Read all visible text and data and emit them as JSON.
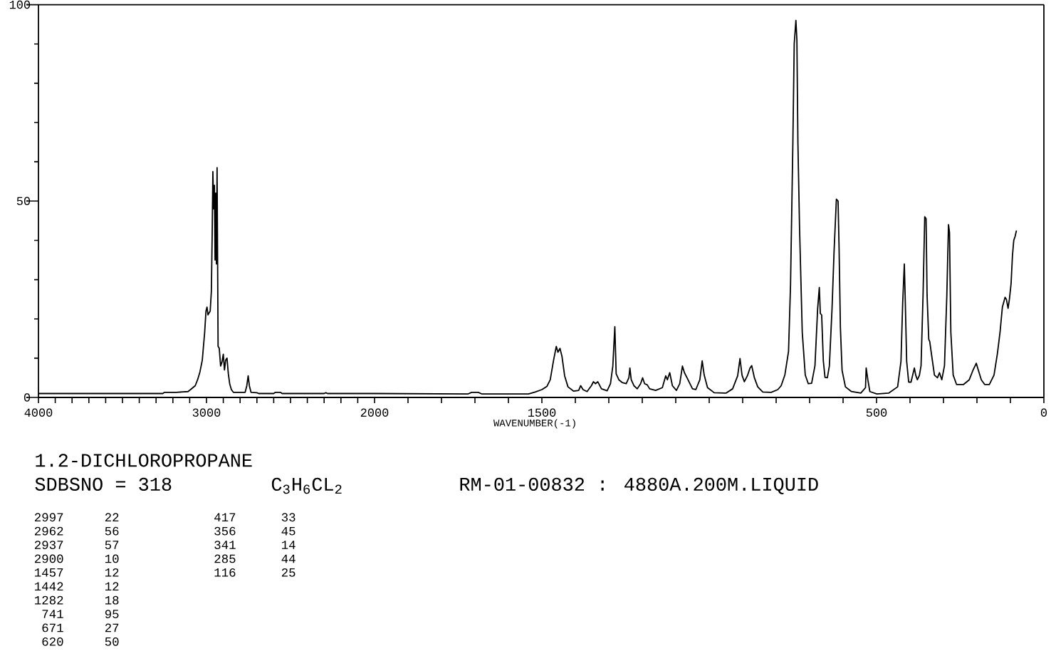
{
  "chart_data": [
    {
      "type": "line",
      "title": "1.2-DICHLOROPROPANE",
      "subtitle": "SDBSNO = 318",
      "annotations": [
        "C$_{3}$H$_{6}$CL$_{2}$",
        "RM-01-00832 : 4880A.200M.LIQUID",
        "2997",
        "22",
        "2962",
        "56",
        "2937",
        "57",
        "2900",
        "10",
        "1457",
        "12",
        "1442",
        "12",
        "1282",
        "18",
        "741",
        "95",
        "671",
        "27",
        "620",
        "50",
        "417",
        "33",
        "356",
        "45",
        "341",
        "14",
        "285",
        "44",
        "116",
        "25"
      ],
      "x": [
        4000,
        3260,
        3250,
        3180,
        3110,
        3095,
        3067,
        3053,
        3039,
        3025,
        3011,
        3003,
        2997,
        2991,
        2985,
        2978,
        2971,
        2966,
        2962,
        2957,
        2953,
        2949,
        2945,
        2941,
        2937,
        2931,
        2924,
        2916,
        2908,
        2900,
        2893,
        2886,
        2878,
        2870,
        2862,
        2852,
        2840,
        2770,
        2760,
        2752,
        2745,
        2735,
        2700,
        2690,
        2600,
        2590,
        2560,
        2550,
        2300,
        2290,
        2280,
        2000
      ],
      "series": [
        {
          "color": "#000000",
          "values": [
            1.0,
            1.0,
            1.3,
            1.3,
            1.5,
            2.0,
            3.0,
            4.5,
            6.5,
            9.5,
            16.5,
            22,
            23,
            21,
            21.5,
            22,
            27,
            42,
            57.5,
            48,
            54,
            35,
            52,
            34,
            58.5,
            13,
            12.5,
            8,
            9,
            11,
            7,
            9.5,
            10,
            6,
            3.5,
            2,
            1.3,
            1.3,
            3,
            5.5,
            3,
            1.3,
            1.2,
            1.0,
            1.0,
            1.3,
            1.3,
            1.0,
            1.0,
            1.2,
            1.0,
            1.0
          ]
        }
      ],
      "xlim": [
        4000,
        2000
      ],
      "ylim": [
        0,
        100
      ],
      "xticks": [
        4000,
        {
          "value": 3900,
          "label": null
        },
        {
          "value": 3800,
          "label": null
        },
        {
          "value": 3700,
          "label": null
        },
        {
          "value": 3600,
          "label": null
        },
        {
          "value": 3500,
          "label": null
        },
        {
          "value": 3400,
          "label": null
        },
        {
          "value": 3300,
          "label": null
        },
        {
          "value": 3200,
          "label": null
        },
        {
          "value": 3100,
          "label": null
        },
        3000,
        {
          "value": 2900,
          "label": null
        },
        {
          "value": 2800,
          "label": null
        },
        {
          "value": 2700,
          "label": null
        },
        {
          "value": 2600,
          "label": null
        },
        {
          "value": 2500,
          "label": null
        },
        {
          "value": 2400,
          "label": null
        },
        {
          "value": 2300,
          "label": null
        },
        {
          "value": 2200,
          "label": null
        },
        {
          "value": 2100,
          "label": null
        },
        2000
      ],
      "yticks": [
        0,
        {
          "value": 10,
          "label": null
        },
        {
          "value": 20,
          "label": null
        },
        {
          "value": 30,
          "label": null
        },
        {
          "value": 40,
          "label": null
        },
        50,
        {
          "value": 60,
          "label": null
        },
        {
          "value": 70,
          "label": null
        },
        {
          "value": 80,
          "label": null
        },
        {
          "value": 90,
          "label": null
        },
        100
      ]
    },
    {
      "type": "line",
      "xlabel": "WAVENUMBER(-1)",
      "x": [
        2000,
        1720,
        1710,
        1690,
        1680,
        1540,
        1520,
        1500,
        1485,
        1475,
        1465,
        1457,
        1452,
        1446,
        1440,
        1432,
        1422,
        1405,
        1390,
        1384,
        1377,
        1365,
        1352,
        1346,
        1340,
        1333,
        1322,
        1305,
        1295,
        1288,
        1282,
        1278,
        1270,
        1260,
        1248,
        1240,
        1237,
        1233,
        1225,
        1215,
        1205,
        1199,
        1193,
        1185,
        1178,
        1160,
        1140,
        1130,
        1125,
        1118,
        1110,
        1098,
        1088,
        1080,
        1074,
        1065,
        1050,
        1040,
        1028,
        1021,
        1015,
        1005,
        985,
        950,
        930,
        915,
        908,
        902,
        895,
        886,
        878,
        873,
        865,
        855,
        840,
        815,
        795,
        785,
        774,
        763,
        757,
        750,
        746,
        741,
        738,
        735,
        730,
        722,
        713,
        704,
        694,
        684,
        676,
        671,
        668,
        664,
        659,
        654,
        647,
        641,
        633,
        627,
        620,
        615,
        612,
        608,
        603,
        593,
        575,
        547,
        533,
        531,
        526,
        520,
        499,
        464,
        437,
        427,
        422,
        417,
        414,
        410,
        404,
        397,
        387,
        383,
        378,
        372,
        367,
        361,
        356,
        352,
        349,
        344,
        341,
        336,
        327,
        318,
        312,
        305,
        297,
        290,
        285,
        282,
        278,
        271,
        261,
        240,
        223,
        212,
        202,
        196,
        187,
        177,
        163,
        149,
        139,
        131,
        124,
        116,
        112,
        107,
        103,
        98,
        94,
        90,
        86,
        82
      ],
      "series": [
        {
          "color": "#000000",
          "values": [
            1.0,
            0.9,
            1.3,
            1.3,
            0.9,
            0.9,
            1.4,
            2,
            2.8,
            4.5,
            9.5,
            13,
            11.5,
            12.5,
            10.5,
            5.5,
            2.7,
            1.6,
            1.8,
            3,
            2,
            1.5,
            3,
            4,
            3.5,
            4,
            2.2,
            1.7,
            3.5,
            8,
            18,
            6,
            4.5,
            3.8,
            3.5,
            5,
            7.5,
            4.5,
            3,
            2.2,
            3.5,
            5,
            3.5,
            3.2,
            2.2,
            1.8,
            2.5,
            5.5,
            4.5,
            6.3,
            3,
            1.8,
            3.5,
            8,
            6.3,
            4.8,
            2.2,
            2,
            4.5,
            9.3,
            5.7,
            2.5,
            1.2,
            1.1,
            2.2,
            5.5,
            9.9,
            5.7,
            4,
            5.5,
            7.5,
            8.1,
            5,
            2.7,
            1.4,
            1.3,
            2,
            3,
            5.7,
            11.7,
            28.7,
            65,
            90,
            96,
            91,
            65,
            43,
            16.6,
            5.7,
            3.5,
            3.6,
            8.1,
            22.6,
            28,
            21.4,
            21,
            9.3,
            5.1,
            5,
            8,
            22.6,
            37,
            50.5,
            50,
            38.3,
            17.8,
            6.9,
            2.7,
            1.5,
            1.1,
            2.5,
            7.5,
            4.5,
            1.5,
            0.9,
            1.1,
            2.7,
            9.2,
            23.8,
            34,
            24,
            9.2,
            3.9,
            3.9,
            7.5,
            5.7,
            4.5,
            5.6,
            8.1,
            26.2,
            46,
            45.5,
            26,
            14.8,
            14.2,
            11.1,
            5.7,
            5,
            6.3,
            4.5,
            8.1,
            26,
            44,
            42,
            16.6,
            5.7,
            3.3,
            3.3,
            4.5,
            6.9,
            8.7,
            7,
            4.5,
            3.3,
            3.3,
            5.7,
            11.1,
            16.6,
            23,
            25.5,
            25,
            22.7,
            25,
            29,
            36,
            40,
            41,
            42.5
          ]
        }
      ],
      "xlim": [
        2000,
        0
      ],
      "ylim": [
        0,
        100
      ],
      "xticks": [
        {
          "value": 1900,
          "label": null
        },
        {
          "value": 1800,
          "label": null
        },
        {
          "value": 1700,
          "label": null
        },
        {
          "value": 1600,
          "label": null
        },
        1500,
        {
          "value": 1400,
          "label": null
        },
        {
          "value": 1300,
          "label": null
        },
        {
          "value": 1200,
          "label": null
        },
        {
          "value": 1100,
          "label": null
        },
        {
          "value": 1000,
          "label": null
        },
        {
          "value": 900,
          "label": null
        },
        {
          "value": 800,
          "label": null
        },
        {
          "value": 700,
          "label": null
        },
        {
          "value": 600,
          "label": null
        },
        500,
        {
          "value": 400,
          "label": null
        },
        {
          "value": 300,
          "label": null
        },
        {
          "value": 200,
          "label": null
        },
        {
          "value": 100,
          "label": null
        },
        0
      ],
      "tick_labels": "x"
    }
  ]
}
